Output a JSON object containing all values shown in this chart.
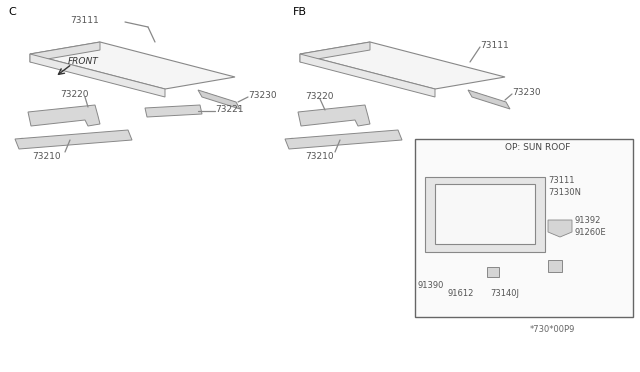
{
  "background_color": "#ffffff",
  "diagram_code": "*730*00P9",
  "left_label": "C",
  "right_label": "FB",
  "sunroof_label": "OP: SUN ROOF",
  "front_label": "FRONT",
  "line_color": "#888888",
  "text_color": "#555555",
  "hatch_color": "#aaaaaa"
}
